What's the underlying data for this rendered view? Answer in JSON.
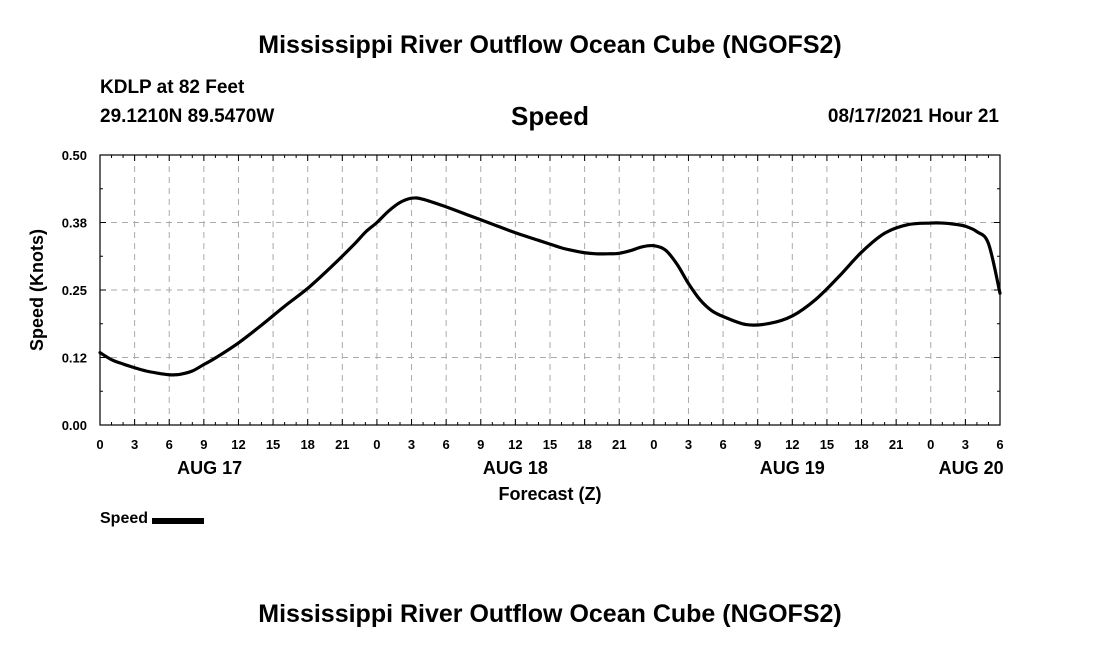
{
  "header": {
    "title": "Mississippi River Outflow Ocean Cube (NGOFS2)",
    "station_name": "KDLP at 82 Feet",
    "station_coords": "29.1210N  89.5470W",
    "plot_title": "Speed",
    "run_time": "08/17/2021 Hour 21"
  },
  "footer": {
    "title": "Mississippi River Outflow Ocean Cube (NGOFS2)"
  },
  "legend": {
    "label": "Speed",
    "color": "#000000"
  },
  "chart_data": {
    "type": "line",
    "xlabel": "Forecast (Z)",
    "ylabel": "Speed (Knots)",
    "x_unit": "hours",
    "xlim": [
      0,
      78
    ],
    "ylim": [
      0.0,
      0.5
    ],
    "y_ticks": [
      "0.00",
      "0.12",
      "0.25",
      "0.38",
      "0.50"
    ],
    "x_ticks": [
      "0",
      "3",
      "6",
      "9",
      "12",
      "15",
      "18",
      "21",
      "0",
      "3",
      "6",
      "9",
      "12",
      "15",
      "18",
      "21",
      "0",
      "3",
      "6",
      "9",
      "12",
      "15",
      "18",
      "21",
      "0",
      "3",
      "6"
    ],
    "date_labels": [
      {
        "label": "AUG 17",
        "hour": 9.5
      },
      {
        "label": "AUG 18",
        "hour": 36
      },
      {
        "label": "AUG 19",
        "hour": 60
      },
      {
        "label": "AUG 20",
        "hour": 75.5
      }
    ],
    "grid": true,
    "legend_position": "bottom-left",
    "series": [
      {
        "name": "Speed",
        "color": "#000000",
        "x": [
          0,
          1,
          2,
          3,
          4,
          5,
          6,
          6.5,
          7,
          8,
          9,
          10,
          12,
          14,
          16,
          18,
          20,
          22,
          23,
          24,
          25,
          26,
          27,
          28,
          30,
          32,
          34,
          36,
          38,
          39,
          40,
          41,
          42,
          43,
          44,
          45,
          46,
          47,
          48,
          49,
          50,
          51,
          52,
          53,
          54,
          56,
          58,
          60,
          62,
          64,
          66,
          68,
          70,
          72,
          73,
          74,
          75,
          76,
          77,
          78
        ],
        "y": [
          0.134,
          0.121,
          0.113,
          0.106,
          0.1,
          0.096,
          0.093,
          0.093,
          0.094,
          0.1,
          0.112,
          0.124,
          0.152,
          0.185,
          0.22,
          0.253,
          0.292,
          0.334,
          0.357,
          0.375,
          0.396,
          0.412,
          0.42,
          0.418,
          0.404,
          0.388,
          0.372,
          0.356,
          0.342,
          0.335,
          0.328,
          0.323,
          0.319,
          0.317,
          0.317,
          0.318,
          0.323,
          0.33,
          0.332,
          0.324,
          0.298,
          0.262,
          0.232,
          0.212,
          0.201,
          0.186,
          0.188,
          0.202,
          0.232,
          0.274,
          0.32,
          0.355,
          0.371,
          0.374,
          0.374,
          0.372,
          0.368,
          0.358,
          0.336,
          0.244
        ]
      }
    ]
  }
}
